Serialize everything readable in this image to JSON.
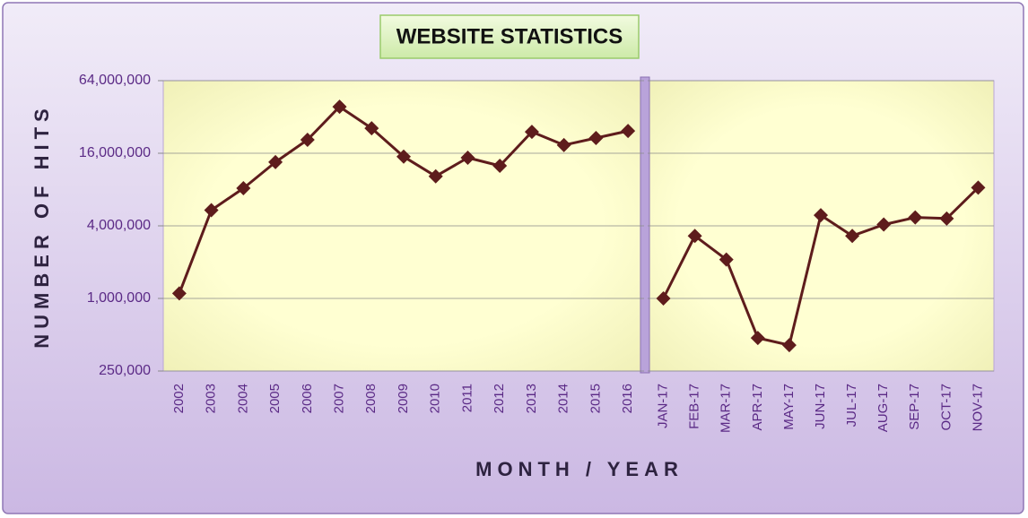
{
  "title": "WEBSITE STATISTICS",
  "x_label": "MONTH / YEAR",
  "y_label": "NUMBER OF HITS",
  "chart_data": [
    {
      "type": "line",
      "yscale": "log",
      "grid": true,
      "color": "#5e1c1c",
      "ylim": [
        250000,
        64000000
      ],
      "yticks": [
        {
          "value": 250000,
          "label": "250,000"
        },
        {
          "value": 1000000,
          "label": "1,000,000"
        },
        {
          "value": 4000000,
          "label": "4,000,000"
        },
        {
          "value": 16000000,
          "label": "16,000,000"
        },
        {
          "value": 64000000,
          "label": "64,000,000"
        }
      ],
      "categories": [
        "2002",
        "2003",
        "2004",
        "2005",
        "2006",
        "2007",
        "2008",
        "2009",
        "2010",
        "2011",
        "2012",
        "2013",
        "2014",
        "2015",
        "2016"
      ],
      "values": [
        1100000,
        5400000,
        8200000,
        13500000,
        20700000,
        38900000,
        25800000,
        15000000,
        10300000,
        14700000,
        12600000,
        24100000,
        18700000,
        21400000,
        24500000
      ]
    },
    {
      "type": "line",
      "yscale": "log",
      "grid": true,
      "color": "#5e1c1c",
      "ylim": [
        250000,
        64000000
      ],
      "categories": [
        "JAN-17",
        "FEB-17",
        "MAR-17",
        "APR-17",
        "MAY-17",
        "JUN-17",
        "JUL-17",
        "AUG-17",
        "SEP-17",
        "OCT-17",
        "NOV-17"
      ],
      "values": [
        1000000,
        3300000,
        2100000,
        470000,
        410000,
        4900000,
        3300000,
        4100000,
        4700000,
        4600000,
        8300000
      ]
    }
  ]
}
